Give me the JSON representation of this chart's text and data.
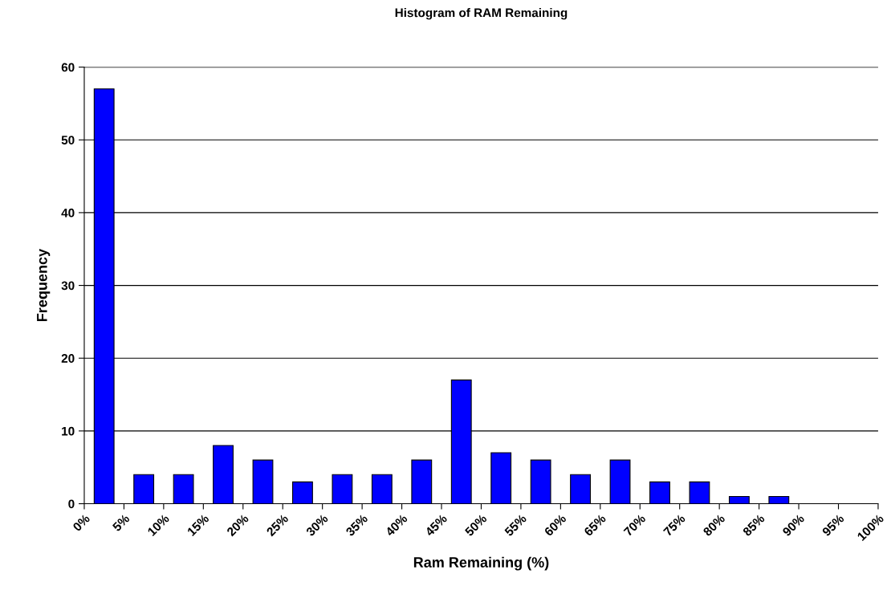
{
  "chart_data": {
    "type": "histogram",
    "title": "Histogram of RAM Remaining",
    "xlabel": "Ram Remaining (%)",
    "ylabel": "Frequency",
    "bins": [
      0,
      5,
      10,
      15,
      20,
      25,
      30,
      35,
      40,
      45,
      50,
      55,
      60,
      65,
      70,
      75,
      80,
      85,
      90,
      95,
      100
    ],
    "values": [
      57,
      4,
      4,
      8,
      6,
      3,
      4,
      4,
      6,
      17,
      7,
      6,
      4,
      6,
      3,
      3,
      1,
      1,
      0,
      0
    ],
    "color": "#0000ff",
    "xlim": [
      0,
      100
    ],
    "xticks": [
      {
        "value": 0,
        "label": "0%"
      },
      {
        "value": 5,
        "label": "5%"
      },
      {
        "value": 10,
        "label": "10%"
      },
      {
        "value": 15,
        "label": "15%"
      },
      {
        "value": 20,
        "label": "20%"
      },
      {
        "value": 25,
        "label": "25%"
      },
      {
        "value": 30,
        "label": "30%"
      },
      {
        "value": 35,
        "label": "35%"
      },
      {
        "value": 40,
        "label": "40%"
      },
      {
        "value": 45,
        "label": "45%"
      },
      {
        "value": 50,
        "label": "50%"
      },
      {
        "value": 55,
        "label": "55%"
      },
      {
        "value": 60,
        "label": "60%"
      },
      {
        "value": 65,
        "label": "65%"
      },
      {
        "value": 70,
        "label": "70%"
      },
      {
        "value": 75,
        "label": "75%"
      },
      {
        "value": 80,
        "label": "80%"
      },
      {
        "value": 85,
        "label": "85%"
      },
      {
        "value": 90,
        "label": "90%"
      },
      {
        "value": 95,
        "label": "95%"
      },
      {
        "value": 100,
        "label": "100%"
      }
    ],
    "ylim": [
      0,
      60
    ],
    "yticks": [
      0,
      10,
      20,
      30,
      40,
      50,
      60
    ],
    "grid": "y",
    "legend": false
  }
}
